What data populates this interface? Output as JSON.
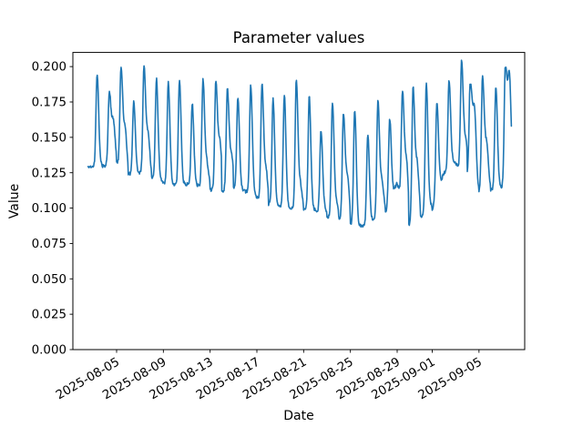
{
  "chart_data": {
    "type": "line",
    "title": "Parameter values",
    "xlabel": "Date",
    "ylabel": "Value",
    "line_color": "#1f77b4",
    "background": "#ffffff",
    "grid": false,
    "legend": null,
    "ylim": [
      0.0,
      0.21
    ],
    "x_range_dates": [
      "2025-08-02",
      "2025-09-08"
    ],
    "y_ticks": [
      0.0,
      0.025,
      0.05,
      0.075,
      0.1,
      0.125,
      0.15,
      0.175,
      0.2
    ],
    "x_ticks": [
      {
        "label": "2025-08-05",
        "day": 5
      },
      {
        "label": "2025-08-09",
        "day": 9
      },
      {
        "label": "2025-08-13",
        "day": 13
      },
      {
        "label": "2025-08-17",
        "day": 17
      },
      {
        "label": "2025-08-21",
        "day": 21
      },
      {
        "label": "2025-08-25",
        "day": 25
      },
      {
        "label": "2025-08-29",
        "day": 29
      },
      {
        "label": "2025-09-01",
        "day": 32
      },
      {
        "label": "2025-09-05",
        "day": 36
      }
    ],
    "series": [
      {
        "name": "parameter",
        "description": "High-frequency time series with one sharp peak per day; baseline troughs decline from ~0.13 (Aug 3) to ~0.087 (Aug 25-26) then recover to ~0.11-0.13 by early September.",
        "start": {
          "day": 2.55,
          "until": 3.02,
          "value": 0.129
        },
        "end_day": 38.78,
        "daily": [
          {
            "date": "2025-08-03",
            "min": 0.129,
            "peak": 0.195
          },
          {
            "date": "2025-08-04",
            "min": 0.13,
            "peak": 0.181,
            "sh": 0.6
          },
          {
            "date": "2025-08-05",
            "min": 0.132,
            "peak": 0.198
          },
          {
            "date": "2025-08-06",
            "min": 0.124,
            "peak": 0.176
          },
          {
            "date": "2025-08-07",
            "min": 0.125,
            "peak": 0.199
          },
          {
            "date": "2025-08-08",
            "min": 0.122,
            "peak": 0.191
          },
          {
            "date": "2025-08-09",
            "min": 0.118,
            "peak": 0.189
          },
          {
            "date": "2025-08-10",
            "min": 0.116,
            "peak": 0.191
          },
          {
            "date": "2025-08-11",
            "min": 0.117,
            "peak": 0.174
          },
          {
            "date": "2025-08-12",
            "min": 0.116,
            "peak": 0.19
          },
          {
            "date": "2025-08-13",
            "min": 0.113,
            "peak": 0.188
          },
          {
            "date": "2025-08-14",
            "min": 0.112,
            "peak": 0.183
          },
          {
            "date": "2025-08-15",
            "min": 0.115,
            "peak": 0.178
          },
          {
            "date": "2025-08-16",
            "min": 0.112,
            "peak": 0.187
          },
          {
            "date": "2025-08-17",
            "min": 0.108,
            "peak": 0.186
          },
          {
            "date": "2025-08-18",
            "min": 0.103,
            "peak": 0.177
          },
          {
            "date": "2025-08-19",
            "min": 0.101,
            "peak": 0.18
          },
          {
            "date": "2025-08-20",
            "min": 0.1,
            "peak": 0.19
          },
          {
            "date": "2025-08-21",
            "min": 0.099,
            "peak": 0.179
          },
          {
            "date": "2025-08-22",
            "min": 0.099,
            "peak": 0.155
          },
          {
            "date": "2025-08-23",
            "min": 0.094,
            "peak": 0.174
          },
          {
            "date": "2025-08-24",
            "min": 0.093,
            "peak": 0.165
          },
          {
            "date": "2025-08-25",
            "min": 0.089,
            "peak": 0.17
          },
          {
            "date": "2025-08-26",
            "min": 0.087,
            "peak": 0.152
          },
          {
            "date": "2025-08-27",
            "min": 0.092,
            "peak": 0.175
          },
          {
            "date": "2025-08-28",
            "min": 0.097,
            "peak": 0.166
          },
          {
            "date": "2025-08-29",
            "min": 0.118,
            "peak": 0.181
          },
          {
            "date": "2025-08-30",
            "min": 0.088,
            "peak": 0.184
          },
          {
            "date": "2025-08-31",
            "min": 0.094,
            "peak": 0.188
          },
          {
            "date": "2025-09-01",
            "min": 0.099,
            "peak": 0.177
          },
          {
            "date": "2025-09-02",
            "min": 0.125,
            "peak": 0.19
          },
          {
            "date": "2025-09-03",
            "min": 0.131,
            "peak": 0.203
          },
          {
            "date": "2025-09-04",
            "min": 0.124,
            "peak": 0.186,
            "tp": 0.25,
            "sh": 0.8
          },
          {
            "date": "2025-09-05",
            "min": 0.112,
            "peak": 0.192,
            "tp": 0.3
          },
          {
            "date": "2025-09-06",
            "min": 0.113,
            "peak": 0.186
          },
          {
            "date": "2025-09-07",
            "min": 0.115,
            "peak": 0.198,
            "tp": 0.25,
            "sh": 0.95
          }
        ]
      }
    ]
  }
}
